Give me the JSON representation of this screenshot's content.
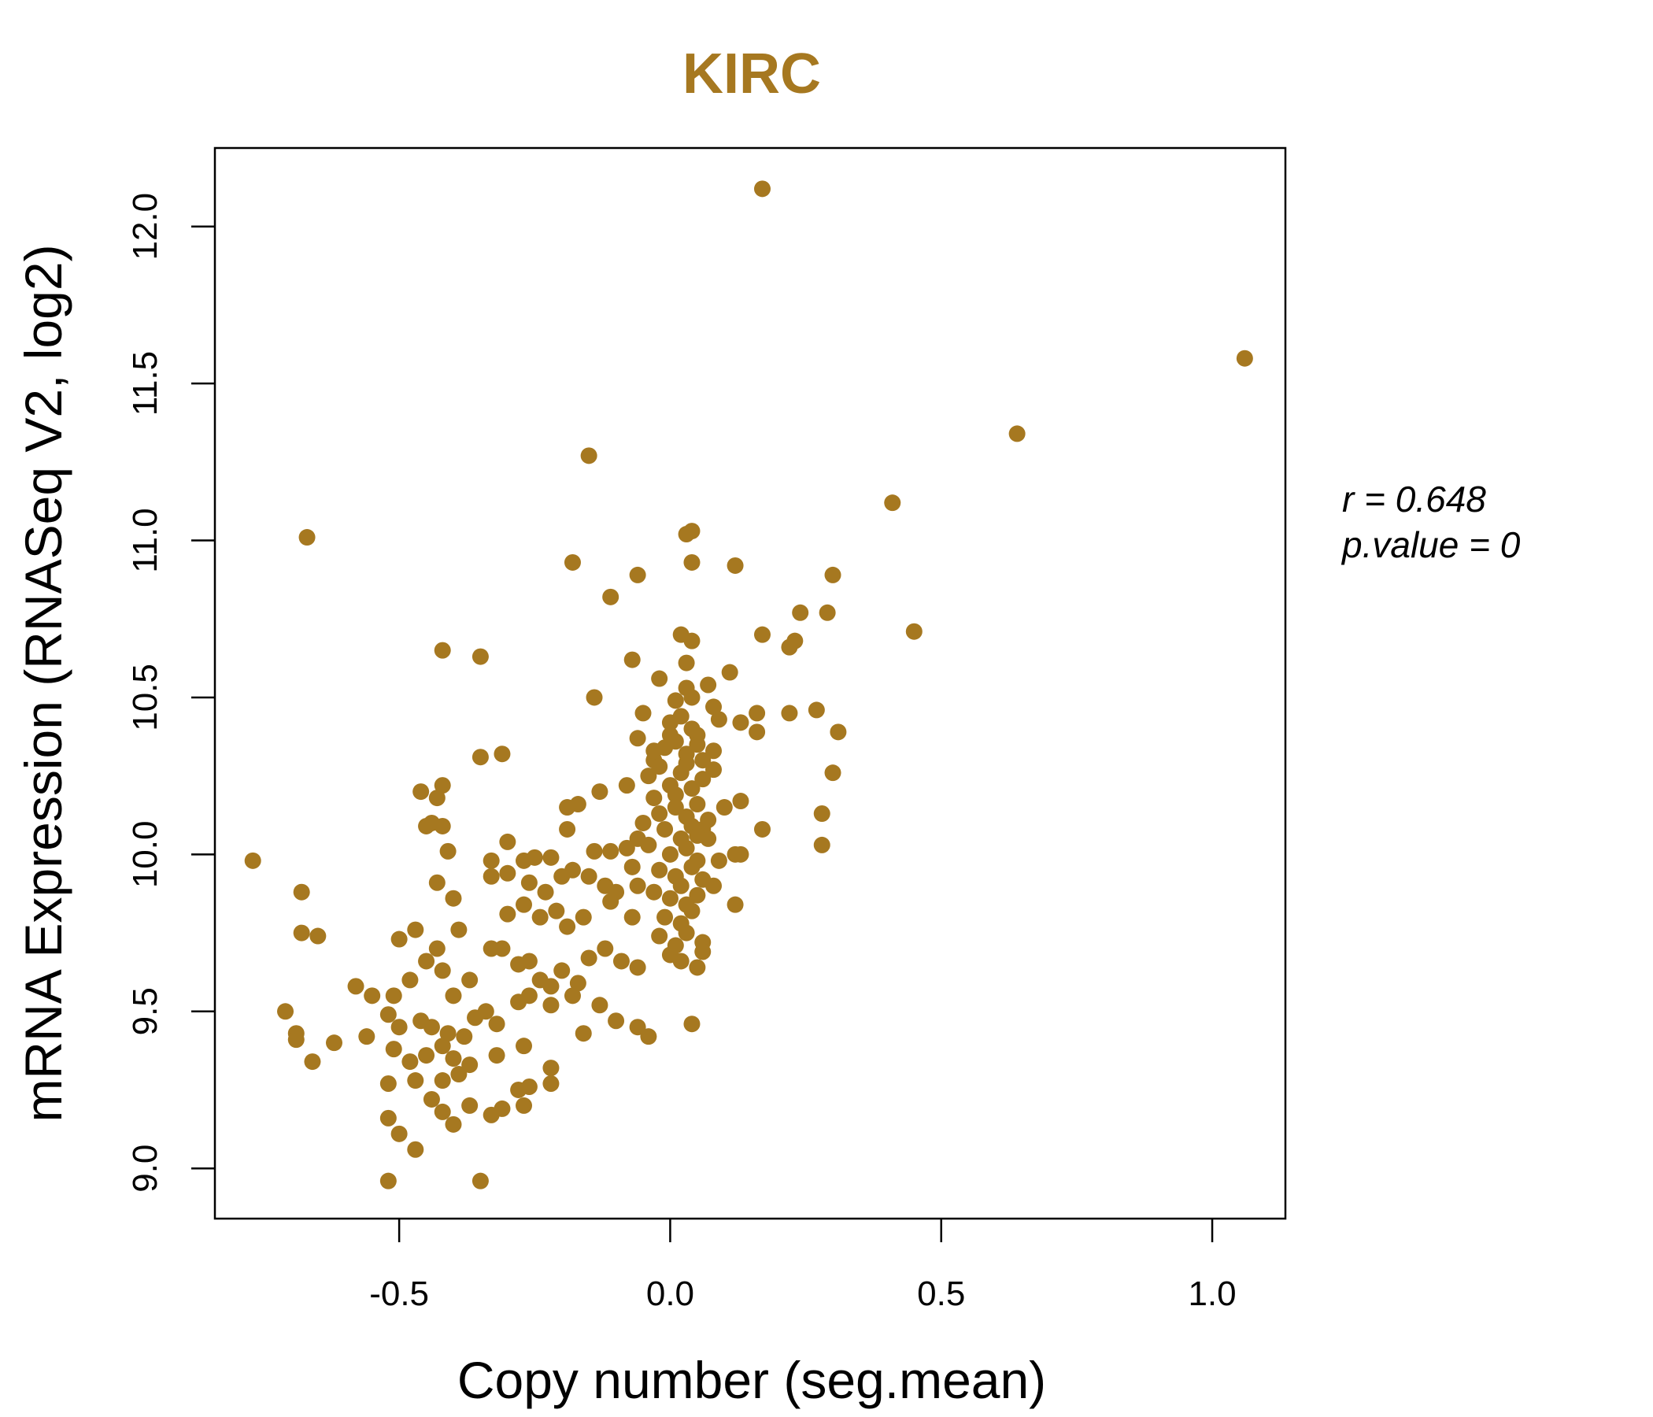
{
  "chart_data": {
    "type": "scatter",
    "title": "KIRC",
    "xlabel": "Copy number (seg.mean)",
    "ylabel": "mRNA Expression (RNASeq V2, log2)",
    "xlim": [
      -0.84,
      1.135
    ],
    "ylim": [
      8.84,
      12.25
    ],
    "xticks": [
      -0.5,
      0.0,
      0.5,
      1.0
    ],
    "xtick_labels": [
      "-0.5",
      "0.0",
      "0.5",
      "1.0"
    ],
    "yticks": [
      9.0,
      9.5,
      10.0,
      10.5,
      11.0,
      11.5,
      12.0
    ],
    "ytick_labels": [
      "9.0",
      "9.5",
      "10.0",
      "10.5",
      "11.0",
      "11.5",
      "12.0"
    ],
    "grid": false,
    "color": "#A67820",
    "stats": {
      "r_label": "r = 0.648",
      "p_label": "p.value = 0"
    },
    "points": [
      [
        0.17,
        12.12
      ],
      [
        1.06,
        11.58
      ],
      [
        0.64,
        11.34
      ],
      [
        -0.15,
        11.27
      ],
      [
        0.41,
        11.12
      ],
      [
        -0.67,
        11.01
      ],
      [
        0.04,
        11.03
      ],
      [
        0.03,
        11.02
      ],
      [
        -0.18,
        10.93
      ],
      [
        0.04,
        10.93
      ],
      [
        0.12,
        10.92
      ],
      [
        0.3,
        10.89
      ],
      [
        -0.06,
        10.89
      ],
      [
        -0.11,
        10.82
      ],
      [
        0.24,
        10.77
      ],
      [
        0.29,
        10.77
      ],
      [
        0.02,
        10.7
      ],
      [
        0.17,
        10.7
      ],
      [
        0.45,
        10.71
      ],
      [
        0.04,
        10.68
      ],
      [
        0.22,
        10.66
      ],
      [
        0.23,
        10.68
      ],
      [
        -0.42,
        10.65
      ],
      [
        -0.35,
        10.63
      ],
      [
        -0.07,
        10.62
      ],
      [
        0.03,
        10.61
      ],
      [
        0.11,
        10.58
      ],
      [
        -0.02,
        10.56
      ],
      [
        0.03,
        10.53
      ],
      [
        0.07,
        10.54
      ],
      [
        -0.14,
        10.5
      ],
      [
        0.01,
        10.49
      ],
      [
        0.04,
        10.5
      ],
      [
        0.08,
        10.47
      ],
      [
        -0.05,
        10.45
      ],
      [
        0.16,
        10.45
      ],
      [
        0.22,
        10.45
      ],
      [
        0.27,
        10.46
      ],
      [
        0.13,
        10.42
      ],
      [
        0.09,
        10.43
      ],
      [
        0.16,
        10.39
      ],
      [
        0.31,
        10.39
      ],
      [
        -0.06,
        10.37
      ],
      [
        0.0,
        10.38
      ],
      [
        0.05,
        10.38
      ],
      [
        -0.35,
        10.31
      ],
      [
        -0.31,
        10.32
      ],
      [
        0.08,
        10.33
      ],
      [
        0.3,
        10.26
      ],
      [
        -0.03,
        10.3
      ],
      [
        -0.46,
        10.2
      ],
      [
        -0.43,
        10.18
      ],
      [
        -0.42,
        10.22
      ],
      [
        -0.13,
        10.2
      ],
      [
        -0.17,
        10.16
      ],
      [
        -0.08,
        10.22
      ],
      [
        -0.19,
        10.15
      ],
      [
        0.1,
        10.15
      ],
      [
        0.13,
        10.17
      ],
      [
        -0.45,
        10.09
      ],
      [
        -0.42,
        10.09
      ],
      [
        -0.44,
        10.1
      ],
      [
        -0.19,
        10.08
      ],
      [
        0.06,
        10.08
      ],
      [
        0.17,
        10.08
      ],
      [
        0.28,
        10.13
      ],
      [
        0.28,
        10.03
      ],
      [
        -0.77,
        9.98
      ],
      [
        -0.41,
        10.01
      ],
      [
        -0.3,
        10.04
      ],
      [
        -0.33,
        9.98
      ],
      [
        -0.27,
        9.98
      ],
      [
        -0.25,
        9.99
      ],
      [
        -0.22,
        9.99
      ],
      [
        -0.14,
        10.01
      ],
      [
        -0.11,
        10.01
      ],
      [
        -0.08,
        10.02
      ],
      [
        0.12,
        10.0
      ],
      [
        0.13,
        10.0
      ],
      [
        -0.68,
        9.88
      ],
      [
        -0.43,
        9.91
      ],
      [
        -0.4,
        9.86
      ],
      [
        -0.33,
        9.93
      ],
      [
        -0.3,
        9.94
      ],
      [
        -0.26,
        9.91
      ],
      [
        -0.23,
        9.88
      ],
      [
        -0.2,
        9.93
      ],
      [
        -0.18,
        9.95
      ],
      [
        -0.15,
        9.93
      ],
      [
        -0.12,
        9.9
      ],
      [
        -0.1,
        9.88
      ],
      [
        -0.06,
        9.9
      ],
      [
        0.12,
        9.84
      ],
      [
        -0.68,
        9.75
      ],
      [
        -0.65,
        9.74
      ],
      [
        -0.5,
        9.73
      ],
      [
        -0.47,
        9.76
      ],
      [
        -0.43,
        9.7
      ],
      [
        -0.39,
        9.76
      ],
      [
        -0.3,
        9.81
      ],
      [
        -0.27,
        9.84
      ],
      [
        -0.24,
        9.8
      ],
      [
        -0.21,
        9.82
      ],
      [
        -0.19,
        9.77
      ],
      [
        -0.16,
        9.8
      ],
      [
        -0.11,
        9.85
      ],
      [
        -0.07,
        9.8
      ],
      [
        0.06,
        9.72
      ],
      [
        -0.58,
        9.58
      ],
      [
        -0.55,
        9.55
      ],
      [
        -0.51,
        9.55
      ],
      [
        -0.48,
        9.6
      ],
      [
        -0.45,
        9.66
      ],
      [
        -0.42,
        9.63
      ],
      [
        -0.4,
        9.55
      ],
      [
        -0.37,
        9.6
      ],
      [
        -0.33,
        9.7
      ],
      [
        -0.31,
        9.7
      ],
      [
        -0.28,
        9.65
      ],
      [
        -0.26,
        9.66
      ],
      [
        -0.24,
        9.6
      ],
      [
        -0.22,
        9.58
      ],
      [
        -0.2,
        9.63
      ],
      [
        -0.17,
        9.59
      ],
      [
        -0.15,
        9.67
      ],
      [
        -0.12,
        9.7
      ],
      [
        -0.09,
        9.66
      ],
      [
        -0.06,
        9.64
      ],
      [
        0.05,
        9.64
      ],
      [
        0.06,
        9.69
      ],
      [
        -0.71,
        9.5
      ],
      [
        -0.69,
        9.43
      ],
      [
        -0.69,
        9.41
      ],
      [
        -0.62,
        9.4
      ],
      [
        -0.56,
        9.42
      ],
      [
        -0.52,
        9.49
      ],
      [
        -0.5,
        9.45
      ],
      [
        -0.46,
        9.47
      ],
      [
        -0.44,
        9.45
      ],
      [
        -0.41,
        9.43
      ],
      [
        -0.38,
        9.42
      ],
      [
        -0.36,
        9.48
      ],
      [
        -0.34,
        9.5
      ],
      [
        -0.32,
        9.46
      ],
      [
        -0.28,
        9.53
      ],
      [
        -0.26,
        9.55
      ],
      [
        -0.22,
        9.52
      ],
      [
        -0.18,
        9.55
      ],
      [
        -0.16,
        9.43
      ],
      [
        -0.13,
        9.52
      ],
      [
        -0.1,
        9.47
      ],
      [
        -0.06,
        9.45
      ],
      [
        -0.04,
        9.42
      ],
      [
        0.04,
        9.46
      ],
      [
        -0.66,
        9.34
      ],
      [
        -0.51,
        9.38
      ],
      [
        -0.48,
        9.34
      ],
      [
        -0.45,
        9.36
      ],
      [
        -0.42,
        9.39
      ],
      [
        -0.4,
        9.35
      ],
      [
        -0.37,
        9.33
      ],
      [
        -0.32,
        9.36
      ],
      [
        -0.27,
        9.39
      ],
      [
        -0.22,
        9.32
      ],
      [
        -0.52,
        9.27
      ],
      [
        -0.47,
        9.28
      ],
      [
        -0.44,
        9.22
      ],
      [
        -0.42,
        9.28
      ],
      [
        -0.39,
        9.3
      ],
      [
        -0.28,
        9.25
      ],
      [
        -0.26,
        9.26
      ],
      [
        -0.22,
        9.27
      ],
      [
        -0.52,
        9.16
      ],
      [
        -0.5,
        9.11
      ],
      [
        -0.42,
        9.18
      ],
      [
        -0.4,
        9.14
      ],
      [
        -0.37,
        9.2
      ],
      [
        -0.33,
        9.17
      ],
      [
        -0.31,
        9.19
      ],
      [
        -0.27,
        9.2
      ],
      [
        -0.47,
        9.06
      ],
      [
        -0.52,
        8.96
      ],
      [
        -0.35,
        8.96
      ],
      [
        -0.04,
        10.25
      ],
      [
        -0.02,
        10.28
      ],
      [
        0.0,
        10.22
      ],
      [
        0.02,
        10.26
      ],
      [
        0.04,
        10.21
      ],
      [
        0.06,
        10.24
      ],
      [
        -0.03,
        10.18
      ],
      [
        0.01,
        10.15
      ],
      [
        0.03,
        10.12
      ],
      [
        0.05,
        10.16
      ],
      [
        -0.05,
        10.1
      ],
      [
        -0.01,
        10.08
      ],
      [
        0.02,
        10.05
      ],
      [
        0.04,
        10.09
      ],
      [
        0.07,
        10.11
      ],
      [
        -0.04,
        10.03
      ],
      [
        0.0,
        10.0
      ],
      [
        0.03,
        10.02
      ],
      [
        0.05,
        9.98
      ],
      [
        -0.02,
        9.95
      ],
      [
        0.01,
        9.93
      ],
      [
        0.04,
        9.96
      ],
      [
        0.06,
        9.92
      ],
      [
        -0.03,
        9.88
      ],
      [
        0.0,
        9.86
      ],
      [
        0.03,
        9.84
      ],
      [
        0.05,
        9.87
      ],
      [
        -0.01,
        9.8
      ],
      [
        0.02,
        9.78
      ],
      [
        0.04,
        9.82
      ],
      [
        -0.02,
        9.74
      ],
      [
        0.01,
        9.71
      ],
      [
        0.03,
        9.75
      ],
      [
        0.0,
        9.68
      ],
      [
        0.02,
        9.66
      ],
      [
        -0.01,
        10.34
      ],
      [
        0.01,
        10.36
      ],
      [
        0.03,
        10.32
      ],
      [
        0.05,
        10.35
      ],
      [
        0.0,
        10.42
      ],
      [
        0.02,
        10.44
      ],
      [
        0.04,
        10.4
      ],
      [
        -0.03,
        10.33
      ],
      [
        0.06,
        10.3
      ],
      [
        0.08,
        10.27
      ],
      [
        0.07,
        10.05
      ],
      [
        0.09,
        9.98
      ],
      [
        0.08,
        9.9
      ],
      [
        -0.06,
        10.05
      ],
      [
        -0.07,
        9.96
      ],
      [
        0.03,
        10.29
      ],
      [
        0.01,
        10.19
      ],
      [
        -0.02,
        10.13
      ],
      [
        0.05,
        10.06
      ],
      [
        0.02,
        9.9
      ]
    ]
  }
}
